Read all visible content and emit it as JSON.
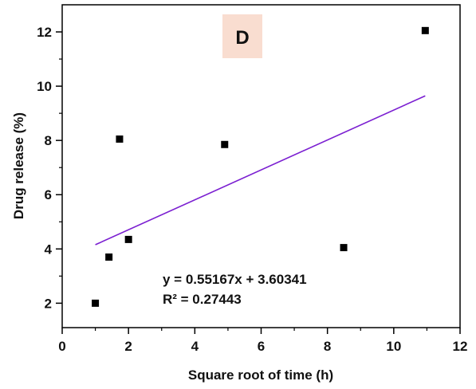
{
  "chart_data": {
    "type": "scatter",
    "panel_label": "D",
    "xlabel": "Square root of time (h)",
    "ylabel": "Drug release (%)",
    "xlim": [
      0,
      12
    ],
    "ylim": [
      1.1,
      13.0
    ],
    "x_ticks": [
      0,
      2,
      4,
      6,
      8,
      10,
      12
    ],
    "y_ticks": [
      2,
      4,
      6,
      8,
      10,
      12
    ],
    "grid": false,
    "points": [
      {
        "x": 1.0,
        "y": 2.0
      },
      {
        "x": 1.41,
        "y": 3.7
      },
      {
        "x": 1.73,
        "y": 8.05
      },
      {
        "x": 2.0,
        "y": 4.35
      },
      {
        "x": 4.9,
        "y": 7.85
      },
      {
        "x": 8.49,
        "y": 4.05
      },
      {
        "x": 10.95,
        "y": 12.05
      }
    ],
    "fit": {
      "slope": 0.55167,
      "intercept": 3.60341,
      "x_range": [
        1.0,
        10.95
      ],
      "equation": "y = 0.55167x + 3.60341",
      "r_squared": "R² = 0.27443"
    },
    "colors": {
      "points": "#000000",
      "fit_line": "#7b1fd1",
      "panel_bg": "#f9ddd0",
      "axis": "#000000"
    }
  }
}
